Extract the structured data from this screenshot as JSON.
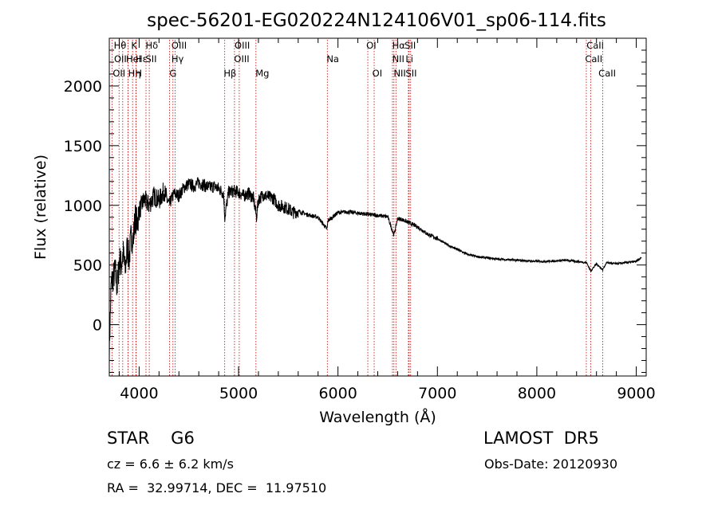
{
  "chart_data": {
    "type": "line",
    "title": "spec-56201-EG020224N124106V01_sp06-114.fits",
    "xlabel": "Wavelength (Å)",
    "ylabel": "Flux (relative)",
    "xlim": [
      3700,
      9100
    ],
    "ylim": [
      -430,
      2400
    ],
    "xticks": [
      4000,
      5000,
      6000,
      7000,
      8000,
      9000
    ],
    "yticks": [
      0,
      500,
      1000,
      1500,
      2000
    ],
    "grid": false,
    "series": [
      {
        "x": [
          3700,
          3720,
          3740,
          3760,
          3780,
          3800,
          3820,
          3840,
          3860,
          3880,
          3900,
          3920,
          3940,
          3960,
          3980,
          4000,
          4050,
          4100,
          4150,
          4200,
          4250,
          4300,
          4350,
          4400,
          4450,
          4500,
          4550,
          4600,
          4650,
          4700,
          4750,
          4800,
          4850,
          4861,
          4900,
          4950,
          5000,
          5050,
          5100,
          5150,
          5180,
          5200,
          5250,
          5300,
          5350,
          5400,
          5450,
          5500,
          5550,
          5600,
          5700,
          5800,
          5890,
          5900,
          6000,
          6100,
          6200,
          6300,
          6400,
          6500,
          6563,
          6600,
          6650,
          6700,
          6750,
          6800,
          6850,
          6900,
          7000,
          7100,
          7200,
          7300,
          7400,
          7500,
          7600,
          7700,
          7800,
          7900,
          8000,
          8100,
          8200,
          8300,
          8400,
          8500,
          8542,
          8600,
          8662,
          8700,
          8800,
          8900,
          9000,
          9050
        ],
        "y": [
          -200,
          350,
          400,
          450,
          300,
          550,
          500,
          600,
          450,
          650,
          550,
          750,
          700,
          900,
          850,
          950,
          1050,
          1000,
          1080,
          1040,
          1120,
          1000,
          1100,
          1080,
          1150,
          1180,
          1160,
          1190,
          1170,
          1150,
          1160,
          1140,
          1100,
          900,
          1110,
          1120,
          1110,
          1080,
          1100,
          1060,
          900,
          1050,
          1090,
          1070,
          1060,
          1000,
          990,
          970,
          940,
          950,
          920,
          900,
          800,
          870,
          940,
          945,
          935,
          925,
          915,
          905,
          750,
          890,
          880,
          860,
          840,
          820,
          790,
          760,
          720,
          670,
          630,
          590,
          570,
          560,
          550,
          545,
          540,
          535,
          530,
          530,
          535,
          540,
          530,
          520,
          450,
          510,
          460,
          520,
          510,
          520,
          530,
          560
        ]
      }
    ],
    "lines": [
      {
        "label": "OII",
        "x": 3727,
        "row": 2,
        "lx": 3735
      },
      {
        "label": "Hθ",
        "x": 3798,
        "row": 0,
        "lx": 3745
      },
      {
        "label": "OII",
        "x": 3835,
        "row": 1,
        "lx": 3748
      },
      {
        "label": "Hη",
        "x": 3889,
        "row": 2,
        "lx": 3890
      },
      {
        "label": "HeI",
        "x": 3889,
        "row": 1,
        "lx": 3868
      },
      {
        "label": "K",
        "x": 3934,
        "row": 0,
        "lx": 3920
      },
      {
        "label": "H",
        "x": 3968,
        "row": 2,
        "lx": 3960
      },
      {
        "label": "Hε",
        "x": 3970,
        "row": 1,
        "lx": 3965
      },
      {
        "label": "SII",
        "x": 4069,
        "row": 1,
        "lx": 4065
      },
      {
        "label": "Hδ",
        "x": 4102,
        "row": 0,
        "lx": 4065
      },
      {
        "label": "OIII",
        "x": 4363,
        "row": 0,
        "lx": 4325
      },
      {
        "label": "Hγ",
        "x": 4340,
        "row": 1,
        "lx": 4325
      },
      {
        "label": "G",
        "x": 4305,
        "row": 2,
        "lx": 4305
      },
      {
        "label": "Hβ",
        "x": 4861,
        "row": 2,
        "lx": 4850
      },
      {
        "label": "OIII",
        "x": 4959,
        "row": 0,
        "lx": 4960
      },
      {
        "label": "OIII",
        "x": 5007,
        "row": 1,
        "lx": 4955
      },
      {
        "label": "Mg",
        "x": 5175,
        "row": 2,
        "lx": 5170
      },
      {
        "label": "Na",
        "x": 5893,
        "row": 1,
        "lx": 5885
      },
      {
        "label": "OI",
        "x": 6300,
        "row": 0,
        "lx": 6285
      },
      {
        "label": "OI",
        "x": 6364,
        "row": 2,
        "lx": 6345
      },
      {
        "label": "Hα",
        "x": 6563,
        "row": 0,
        "lx": 6545
      },
      {
        "label": "NII",
        "x": 6548,
        "row": 1,
        "lx": 6545
      },
      {
        "label": "NII",
        "x": 6583,
        "row": 2,
        "lx": 6560
      },
      {
        "label": "SII",
        "x": 6716,
        "row": 0,
        "lx": 6670
      },
      {
        "label": "Li",
        "x": 6708,
        "row": 1,
        "lx": 6680
      },
      {
        "label": "SII",
        "x": 6731,
        "row": 2,
        "lx": 6680
      },
      {
        "label": "CaII",
        "x": 8498,
        "row": 0,
        "lx": 8500
      },
      {
        "label": "CaII",
        "x": 8542,
        "row": 1,
        "lx": 8485
      },
      {
        "label": "CaII",
        "x": 8662,
        "row": 2,
        "lx": 8620
      }
    ]
  },
  "info": {
    "obj_class": "STAR    G6",
    "survey": "LAMOST  DR5",
    "cz": "cz = 6.6 ± 6.2 km/s",
    "obs_date": "Obs-Date: 20120930",
    "radec": "RA =  32.99714, DEC =  11.97510"
  },
  "colors": {
    "spectrum": "#000000",
    "line_markers": "#cc0000",
    "axes": "#000000",
    "background": "#ffffff"
  }
}
